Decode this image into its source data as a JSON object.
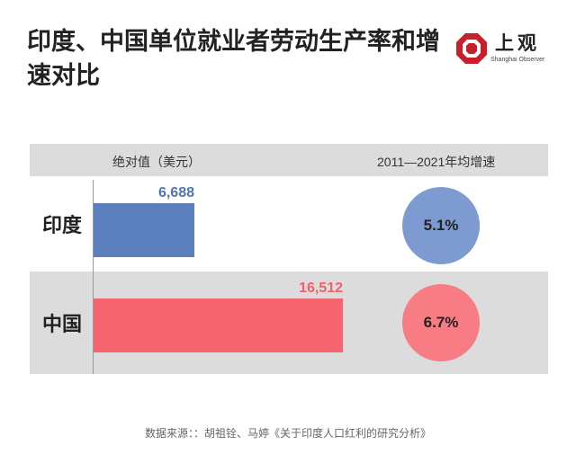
{
  "title": "印度、中国单位就业者劳动生产率和增速对比",
  "logo": {
    "name": "上观",
    "subtitle": "Shanghai Observer"
  },
  "colors": {
    "india": "#5b80bd",
    "china": "#f4636e",
    "india_circle": "#7d9bd0",
    "china_circle": "#f77c83"
  },
  "chart_data": {
    "type": "bar",
    "orientation": "horizontal",
    "categories": [
      "印度",
      "中国"
    ],
    "series": [
      {
        "name": "绝对值（美元）",
        "values": [
          6688,
          16512
        ]
      },
      {
        "name": "2011—2021年均增速",
        "values": [
          5.1,
          6.7
        ],
        "unit": "%"
      }
    ],
    "column_headers": [
      "绝对值（美元）",
      "2011—2021年均增速"
    ],
    "value_labels": [
      "6,688",
      "16,512"
    ],
    "growth_labels": [
      "5.1%",
      "6.7%"
    ],
    "xlim": [
      0,
      20000
    ]
  },
  "source": "数据来源：：胡祖铨、马婷《关于印度人口红利的研究分析》"
}
